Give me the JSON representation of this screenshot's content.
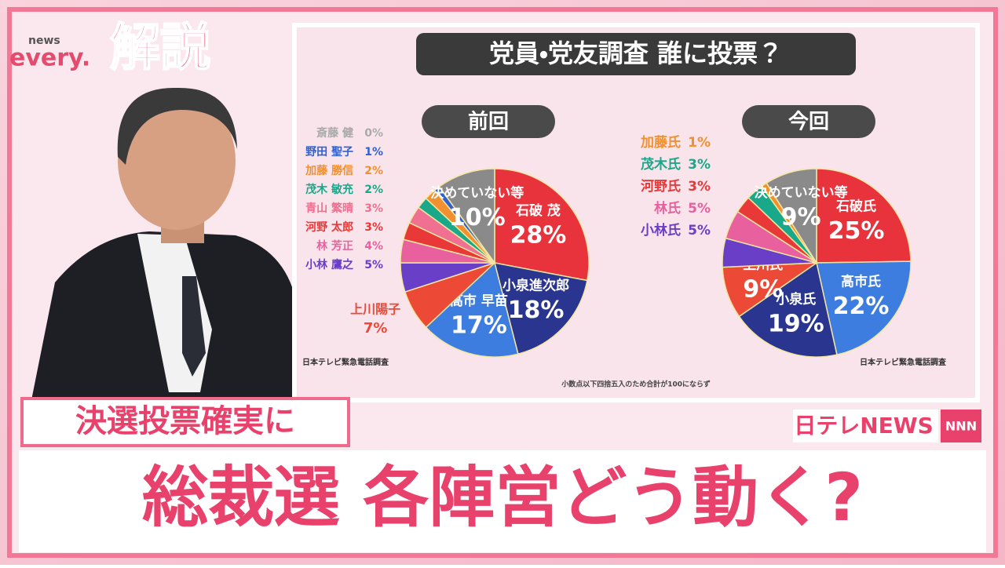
{
  "header": {
    "logo_small": "news",
    "logo": "every.",
    "corner": "解説"
  },
  "panel": {
    "title": "党員・党友調査 誰に投票？",
    "note": "小数点以下四捨五入のため合計が100にならず"
  },
  "chart_data": [
    {
      "type": "pie",
      "title": "前回",
      "source": "日本テレビ緊急電話調査",
      "categories": [
        "石破 茂",
        "小泉進次郎",
        "高市 早苗",
        "上川陽子",
        "小林 鷹之",
        "林 芳正",
        "河野 太郎",
        "青山 繁晴",
        "茂木 敏充",
        "加藤 勝信",
        "野田 聖子",
        "斎藤 健",
        "決めていない等"
      ],
      "values": [
        28,
        18,
        17,
        7,
        5,
        4,
        3,
        3,
        2,
        2,
        1,
        0,
        10
      ],
      "value_labels": [
        "28%",
        "18%",
        "17%",
        "7%",
        "5%",
        "4%",
        "3%",
        "3%",
        "2%",
        "2%",
        "1%",
        "0%",
        "10%"
      ],
      "colors": [
        "#e8323c",
        "#2a3590",
        "#3d7de0",
        "#ec4a36",
        "#6a3fc8",
        "#e8609e",
        "#e83838",
        "#ef7090",
        "#1aa88a",
        "#f09030",
        "#3060d0",
        "#aaaaaa",
        "#8a8a8a"
      ]
    },
    {
      "type": "pie",
      "title": "今回",
      "source": "日本テレビ緊急電話調査",
      "categories": [
        "石破氏",
        "高市氏",
        "小泉氏",
        "上川氏",
        "小林氏",
        "林氏",
        "河野氏",
        "茂木氏",
        "加藤氏",
        "決めていない等"
      ],
      "values": [
        25,
        22,
        19,
        9,
        5,
        5,
        3,
        3,
        1,
        9
      ],
      "value_labels": [
        "25%",
        "22%",
        "19%",
        "9%",
        "5%",
        "5%",
        "3%",
        "3%",
        "1%",
        "9%"
      ],
      "colors": [
        "#e8323c",
        "#3d7de0",
        "#2a3590",
        "#ec4a36",
        "#6a3fc8",
        "#e8609e",
        "#e83838",
        "#1aa88a",
        "#f09030",
        "#8a8a8a"
      ]
    }
  ],
  "caption": {
    "sub": "決選投票確実に",
    "main": "総裁選 各陣営どう動く?"
  },
  "brand": {
    "name": "日テレNEWS",
    "network": "NNN"
  }
}
